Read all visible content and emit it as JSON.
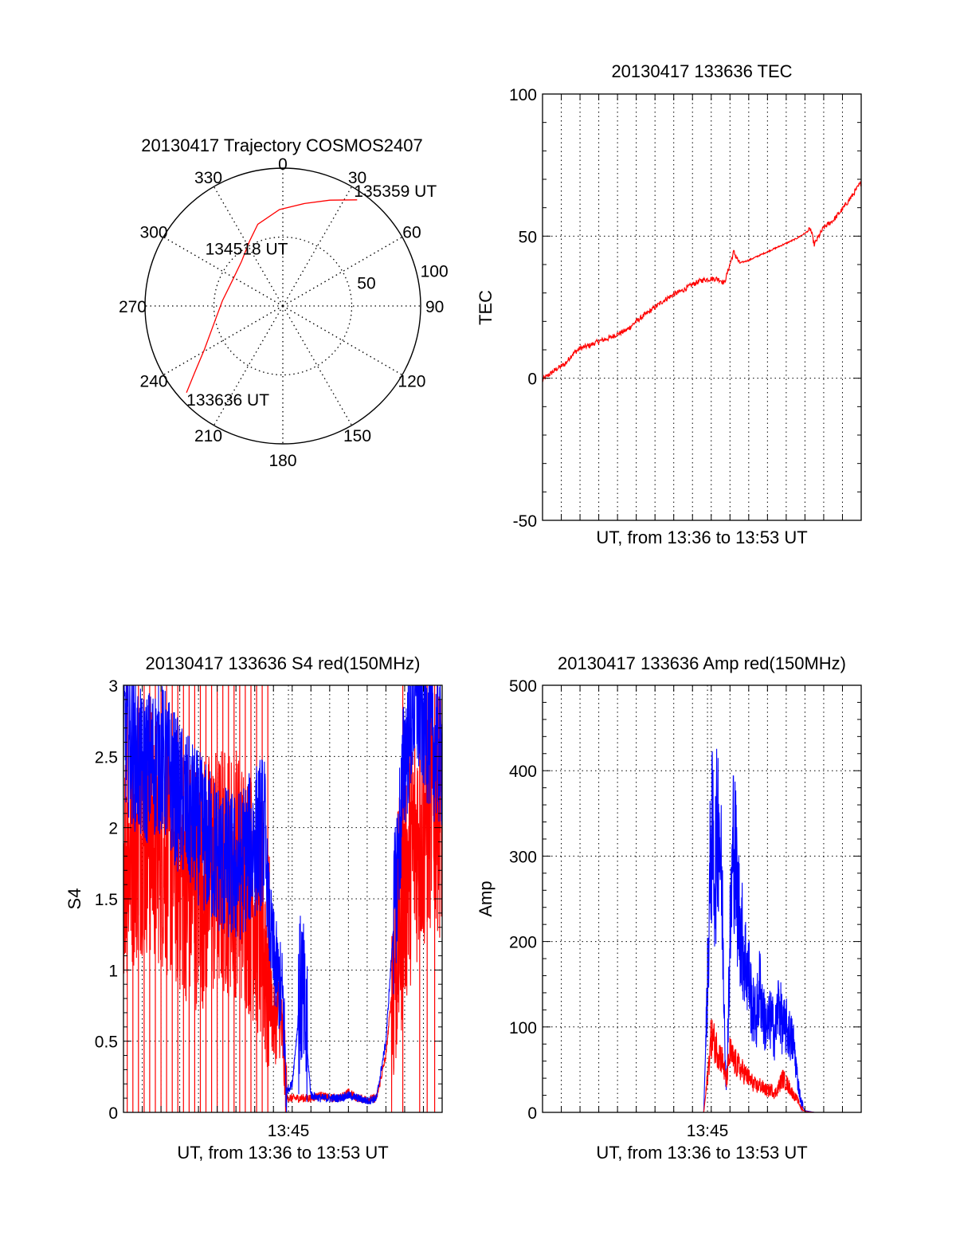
{
  "colors": {
    "red": "#ff0000",
    "blue": "#0000ff",
    "axis": "#000000",
    "grid": "#000000"
  },
  "chart_data": [
    {
      "id": "trajectory",
      "type": "polar",
      "title": "20130417 Trajectory COSMOS2407",
      "angle_labels": [
        "0",
        "30",
        "60",
        "90",
        "120",
        "150",
        "180",
        "210",
        "240",
        "270",
        "300",
        "330"
      ],
      "radius_labels": [
        "50",
        "100"
      ],
      "radius_range": [
        0,
        100
      ],
      "grid": "dotted",
      "track": {
        "color": "red",
        "points": [
          {
            "azimuth": 228,
            "zenith": 94
          },
          {
            "azimuth": 233,
            "zenith": 80
          },
          {
            "azimuth": 241,
            "zenith": 65
          },
          {
            "azimuth": 255,
            "zenith": 52
          },
          {
            "azimuth": 275,
            "zenith": 44
          },
          {
            "azimuth": 297,
            "zenith": 41
          },
          {
            "azimuth": 317,
            "zenith": 44
          },
          {
            "azimuth": 333,
            "zenith": 53
          },
          {
            "azimuth": 343,
            "zenith": 62
          },
          {
            "azimuth": 358,
            "zenith": 70
          },
          {
            "azimuth": 12,
            "zenith": 76
          },
          {
            "azimuth": 24,
            "zenith": 84
          },
          {
            "azimuth": 35,
            "zenith": 94
          }
        ]
      },
      "annotations": [
        {
          "text": "133636 UT",
          "azimuth": 228,
          "zenith": 94
        },
        {
          "text": "134518 UT",
          "azimuth": 312,
          "zenith": 40
        },
        {
          "text": "135359 UT",
          "azimuth": 35,
          "zenith": 94
        }
      ]
    },
    {
      "id": "tec",
      "type": "line",
      "title": "20130417 133636 TEC",
      "xlabel": "UT, from 13:36 to 13:53 UT",
      "ylabel": "TEC",
      "ylim": [
        -50,
        100
      ],
      "yticks": [
        -50,
        0,
        50,
        100
      ],
      "xlim_minutes": [
        0,
        17
      ],
      "xticklabels": [],
      "grid": "dotted",
      "series": [
        {
          "color": "red",
          "x_minutes": [
            0.0,
            0.4,
            0.8,
            1.2,
            1.6,
            2.0,
            2.5,
            3.0,
            3.5,
            4.0,
            4.5,
            5.0,
            5.5,
            6.0,
            6.5,
            7.0,
            7.5,
            8.0,
            8.5,
            9.0,
            9.3,
            9.5,
            9.7,
            9.9,
            10.2,
            10.5,
            11.0,
            11.5,
            12.0,
            12.5,
            13.0,
            13.5,
            14.0,
            14.3,
            14.5,
            14.7,
            15.0,
            15.5,
            16.0,
            16.5,
            17.0
          ],
          "values": [
            -0.5,
            1.5,
            3.5,
            5.0,
            8.5,
            10.5,
            11.5,
            13.0,
            14.0,
            15.5,
            17.0,
            20.0,
            22.5,
            25.0,
            27.5,
            29.5,
            31.0,
            33.0,
            34.5,
            35.0,
            35.0,
            34.5,
            33.5,
            38.0,
            44.5,
            40.5,
            41.5,
            43.0,
            44.5,
            46.0,
            47.5,
            49.0,
            51.0,
            52.5,
            47.0,
            49.5,
            53.0,
            55.5,
            59.5,
            64.0,
            69.0
          ]
        }
      ]
    },
    {
      "id": "s4",
      "type": "line",
      "title": "20130417 133636 S4 red(150MHz)",
      "xlabel": "UT, from 13:36 to 13:53 UT",
      "ylabel": "S4",
      "ylim": [
        0,
        3
      ],
      "yticks": [
        0,
        0.5,
        1,
        1.5,
        2,
        2.5,
        3
      ],
      "yticklabels": [
        "0",
        "0.5",
        "1",
        "1.5",
        "2",
        "2.5",
        "3"
      ],
      "xlim_minutes": [
        0,
        17
      ],
      "xticks": [
        {
          "minutes": 8.8,
          "label": "13:45"
        }
      ],
      "grid": "dotted",
      "series": [
        {
          "name": "red",
          "color": "red",
          "x_minutes": [
            0.0,
            1.0,
            2.0,
            3.0,
            4.0,
            5.0,
            6.0,
            7.0,
            7.5,
            7.8,
            8.0,
            8.3,
            8.5,
            8.7,
            9.0,
            9.5,
            10.0,
            10.5,
            11.0,
            11.5,
            12.0,
            12.5,
            13.0,
            13.5,
            14.0,
            14.5,
            15.0,
            15.5,
            16.0,
            16.5,
            17.0
          ],
          "values": [
            1.8,
            2.0,
            1.9,
            1.7,
            1.6,
            1.7,
            1.7,
            1.5,
            1.2,
            0.9,
            0.6,
            0.7,
            0.5,
            0.1,
            0.1,
            0.1,
            0.1,
            0.12,
            0.1,
            0.1,
            0.14,
            0.1,
            0.09,
            0.1,
            0.4,
            1.1,
            1.6,
            1.9,
            2.0,
            2.2,
            2.1
          ],
          "dropouts_minutes": [
            0.2,
            0.5,
            0.8,
            1.1,
            1.4,
            1.7,
            2.0,
            2.3,
            2.6,
            2.9,
            3.2,
            3.5,
            3.8,
            4.1,
            4.4,
            4.7,
            5.0,
            5.3,
            5.6,
            5.9,
            6.2,
            6.5,
            6.8,
            7.1,
            7.4,
            7.7,
            14.9,
            15.8,
            16.2,
            16.6
          ]
        },
        {
          "name": "blue",
          "color": "blue",
          "x_minutes": [
            0.0,
            1.0,
            2.0,
            3.0,
            4.0,
            5.0,
            6.0,
            7.0,
            7.5,
            7.8,
            8.0,
            8.3,
            8.5,
            8.7,
            9.0,
            9.5,
            10.0,
            10.5,
            11.0,
            11.5,
            12.0,
            12.5,
            13.0,
            13.5,
            14.0,
            14.5,
            15.0,
            15.5,
            16.0,
            16.5,
            17.0
          ],
          "values": [
            2.7,
            2.4,
            2.5,
            2.2,
            2.0,
            1.8,
            1.7,
            1.9,
            2.0,
            1.3,
            1.1,
            0.9,
            0.8,
            0.15,
            0.2,
            0.9,
            0.12,
            0.1,
            0.1,
            0.1,
            0.12,
            0.1,
            0.08,
            0.1,
            0.5,
            1.5,
            2.5,
            2.9,
            2.8,
            2.6,
            2.5
          ]
        }
      ]
    },
    {
      "id": "amp",
      "type": "line",
      "title": "20130417 133636 Amp red(150MHz)",
      "xlabel": "UT, from 13:36 to 13:53 UT",
      "ylabel": "Amp",
      "ylim": [
        0,
        500
      ],
      "yticks": [
        0,
        100,
        200,
        300,
        400,
        500
      ],
      "xlim_minutes": [
        0,
        17
      ],
      "xticks": [
        {
          "minutes": 8.8,
          "label": "13:45"
        }
      ],
      "grid": "dotted",
      "series": [
        {
          "name": "blue",
          "color": "blue",
          "x_minutes": [
            0.0,
            8.6,
            8.8,
            9.0,
            9.2,
            9.4,
            9.6,
            9.8,
            10.0,
            10.2,
            10.4,
            10.6,
            10.8,
            11.0,
            11.2,
            11.4,
            11.6,
            11.8,
            12.0,
            12.2,
            12.4,
            12.6,
            12.8,
            13.0,
            13.2,
            13.4,
            13.6,
            13.8,
            14.0,
            14.5,
            15.0,
            17.0
          ],
          "values": [
            0,
            0,
            150,
            330,
            280,
            360,
            230,
            20,
            200,
            330,
            250,
            210,
            180,
            160,
            120,
            110,
            150,
            110,
            100,
            110,
            90,
            130,
            100,
            100,
            90,
            80,
            40,
            10,
            2,
            0,
            0,
            0
          ]
        },
        {
          "name": "red",
          "color": "red",
          "x_minutes": [
            0.0,
            8.6,
            8.8,
            9.0,
            9.2,
            9.4,
            9.6,
            9.8,
            10.0,
            10.2,
            10.4,
            10.6,
            10.8,
            11.0,
            11.2,
            11.4,
            11.6,
            11.8,
            12.0,
            12.2,
            12.4,
            12.6,
            12.8,
            13.0,
            13.2,
            13.4,
            13.6,
            13.8,
            14.0,
            14.5,
            15.0,
            17.0
          ],
          "values": [
            0,
            0,
            40,
            90,
            80,
            70,
            60,
            35,
            70,
            60,
            55,
            50,
            45,
            40,
            35,
            30,
            32,
            28,
            25,
            27,
            22,
            30,
            40,
            35,
            28,
            20,
            15,
            5,
            1,
            0,
            0,
            0
          ]
        }
      ]
    }
  ]
}
